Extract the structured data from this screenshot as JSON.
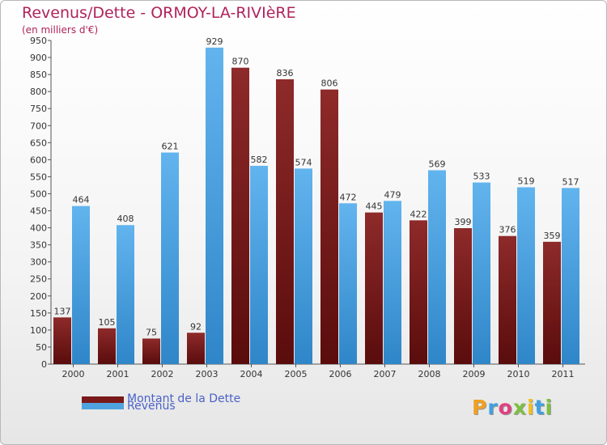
{
  "title": "Revenus/Dette - ORMOY-LA-RIVIèRE",
  "subtitle": "(en milliers d'€)",
  "chart_data": {
    "type": "bar",
    "categories": [
      "2000",
      "2001",
      "2002",
      "2003",
      "2004",
      "2005",
      "2006",
      "2007",
      "2008",
      "2009",
      "2010",
      "2011"
    ],
    "series": [
      {
        "name": "Montant de la Dette",
        "color": "#7a1a1a",
        "values": [
          137,
          105,
          75,
          92,
          870,
          836,
          806,
          445,
          422,
          399,
          376,
          359
        ]
      },
      {
        "name": "Revenus",
        "color": "#4fa3e0",
        "values": [
          464,
          408,
          621,
          929,
          582,
          574,
          472,
          479,
          569,
          533,
          519,
          517
        ]
      }
    ],
    "ylim": [
      0,
      950
    ],
    "yticks": [
      0,
      50,
      100,
      150,
      200,
      250,
      300,
      350,
      400,
      450,
      500,
      550,
      600,
      650,
      700,
      750,
      800,
      850,
      900,
      950
    ],
    "grid": false,
    "legend_position": "bottom-left"
  },
  "legend": [
    {
      "label": "Montant de la Dette",
      "color": "#7a1a1a"
    },
    {
      "label": "Revenus",
      "color": "#4fa3e0"
    }
  ],
  "logo": {
    "letters": [
      {
        "char": "P",
        "color": "#f0a020"
      },
      {
        "char": "r",
        "color": "#3fa0e0"
      },
      {
        "char": "o",
        "color": "#e04080"
      },
      {
        "char": "x",
        "color": "#7cc040"
      },
      {
        "char": "i",
        "color": "#f0c020"
      },
      {
        "char": "t",
        "color": "#3fa0e0"
      },
      {
        "char": "i",
        "color": "#7cc040"
      }
    ]
  }
}
